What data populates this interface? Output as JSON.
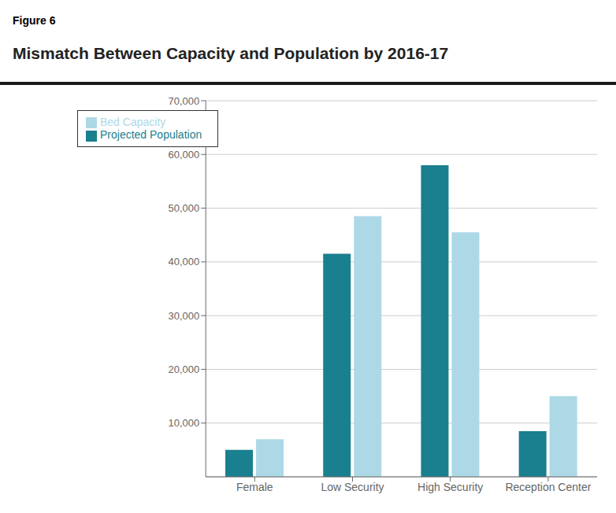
{
  "chart_data": {
    "type": "bar",
    "title": "Mismatch Between Capacity and Population by 2016-17",
    "subtitle": "Figure 6",
    "categories": [
      "Female",
      "Low Security",
      "High Security",
      "Reception Center"
    ],
    "series": [
      {
        "name": "Projected Population",
        "color": "#1a7f8e",
        "values": [
          5000,
          41500,
          58000,
          8500
        ]
      },
      {
        "name": "Bed Capacity",
        "color": "#add8e6",
        "values": [
          7000,
          48500,
          45500,
          15000
        ]
      }
    ],
    "ylim": [
      0,
      70000
    ],
    "yticks": [
      {
        "value": 10000,
        "label": "10,000"
      },
      {
        "value": 20000,
        "label": "20,000"
      },
      {
        "value": 30000,
        "label": "30,000"
      },
      {
        "value": 40000,
        "label": "40,000"
      },
      {
        "value": 50000,
        "label": "50,000"
      },
      {
        "value": 60000,
        "label": "60,000"
      },
      {
        "value": 70000,
        "label": "70,000"
      }
    ],
    "grid": true,
    "legend": "upper left"
  }
}
